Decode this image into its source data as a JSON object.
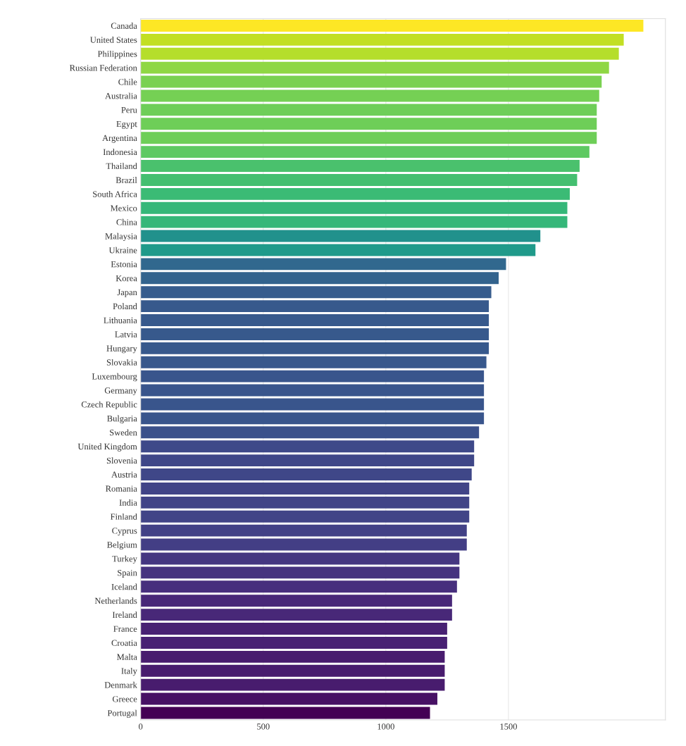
{
  "chart_data": {
    "type": "bar",
    "orientation": "horizontal",
    "categories": [
      "Canada",
      "United States",
      "Philippines",
      "Russian Federation",
      "Chile",
      "Australia",
      "Peru",
      "Egypt",
      "Argentina",
      "Indonesia",
      "Thailand",
      "Brazil",
      "South Africa",
      "Mexico",
      "China",
      "Malaysia",
      "Ukraine",
      "Estonia",
      "Korea",
      "Japan",
      "Poland",
      "Lithuania",
      "Latvia",
      "Hungary",
      "Slovakia",
      "Luxembourg",
      "Germany",
      "Czech Republic",
      "Bulgaria",
      "Sweden",
      "United Kingdom",
      "Slovenia",
      "Austria",
      "Romania",
      "India",
      "Finland",
      "Cyprus",
      "Belgium",
      "Turkey",
      "Spain",
      "Iceland",
      "Netherlands",
      "Ireland",
      "France",
      "Croatia",
      "Malta",
      "Italy",
      "Denmark",
      "Greece",
      "Portugal"
    ],
    "values": [
      2050,
      1970,
      1950,
      1910,
      1880,
      1870,
      1860,
      1860,
      1860,
      1830,
      1790,
      1780,
      1750,
      1740,
      1740,
      1630,
      1610,
      1490,
      1460,
      1430,
      1420,
      1420,
      1420,
      1420,
      1410,
      1400,
      1400,
      1400,
      1400,
      1380,
      1360,
      1360,
      1350,
      1340,
      1340,
      1340,
      1330,
      1330,
      1300,
      1300,
      1290,
      1270,
      1270,
      1250,
      1250,
      1240,
      1240,
      1240,
      1210,
      1180
    ],
    "colors": [
      "#fde725",
      "#c2df23",
      "#b5de2b",
      "#8fd744",
      "#7ad151",
      "#75d054",
      "#6ece58",
      "#6ece58",
      "#6ece58",
      "#5ec962",
      "#4ac16d",
      "#44bf70",
      "#3bbb75",
      "#35b779",
      "#35b779",
      "#21918c",
      "#1f9a8a",
      "#31688e",
      "#33638d",
      "#365c8d",
      "#37598c",
      "#37598c",
      "#37598c",
      "#37598c",
      "#38588c",
      "#39558c",
      "#39558c",
      "#39558c",
      "#39558c",
      "#3b518b",
      "#3e4989",
      "#3f4788",
      "#3f4788",
      "#414487",
      "#414487",
      "#414487",
      "#424186",
      "#433e85",
      "#453781",
      "#46337f",
      "#472f7d",
      "#482878",
      "#482878",
      "#482173",
      "#482173",
      "#481c6e",
      "#481c6e",
      "#481c6e",
      "#471164",
      "#440154"
    ],
    "xlim": [
      0,
      2140
    ],
    "xticks": [
      0,
      500,
      1000,
      1500
    ],
    "grid": "x"
  }
}
